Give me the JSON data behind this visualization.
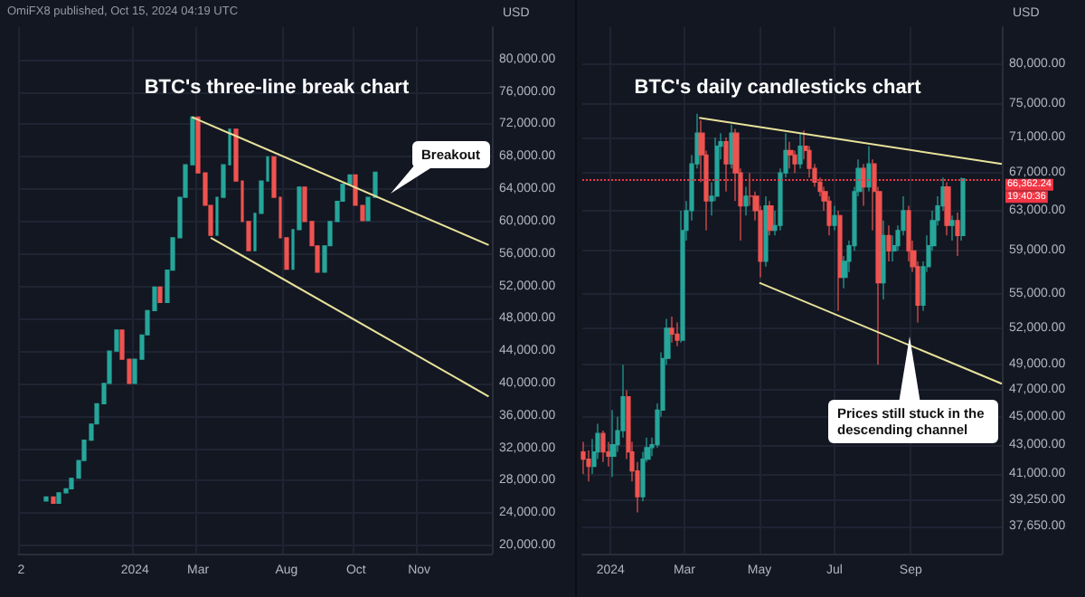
{
  "chart_data": [
    {
      "type": "candlestick",
      "title": "BTC's three-line break chart",
      "ylabel": "USD",
      "categories": [
        "2",
        null,
        null,
        null,
        null,
        null,
        null,
        null,
        null,
        null,
        null,
        null,
        null,
        null,
        null,
        null,
        null,
        null,
        "2024",
        null,
        null,
        null,
        null,
        null,
        null,
        null,
        null,
        null,
        "Mar",
        null,
        null,
        null,
        null,
        null,
        null,
        null,
        null,
        null,
        null,
        null,
        null,
        null,
        "Aug",
        null,
        null,
        null,
        null,
        null,
        null,
        null,
        null,
        null,
        null,
        "Oct",
        null,
        null,
        null,
        null,
        null,
        null,
        null,
        null,
        null,
        "Nov",
        null,
        null,
        null,
        null,
        null,
        null,
        null,
        null,
        null,
        null,
        null
      ],
      "ohlc": [
        null,
        null,
        null,
        null,
        [
          25500,
          26000,
          25500,
          26000
        ],
        [
          26000,
          26000,
          25200,
          25200
        ],
        [
          25200,
          26500,
          25200,
          26500
        ],
        [
          26500,
          27000,
          26500,
          27000
        ],
        [
          27000,
          28300,
          27000,
          28300
        ],
        [
          28300,
          30500,
          28300,
          30500
        ],
        [
          30500,
          33000,
          30500,
          33000
        ],
        [
          33000,
          35000,
          33000,
          35000
        ],
        [
          35000,
          37500,
          35000,
          37500
        ],
        [
          37500,
          40000,
          37500,
          40000
        ],
        [
          40000,
          44000,
          40000,
          44000
        ],
        [
          44000,
          46600,
          44000,
          46600
        ],
        [
          46600,
          46600,
          43000,
          43000
        ],
        [
          43000,
          43000,
          40000,
          40000
        ],
        [
          40000,
          43000,
          40000,
          43000
        ],
        [
          43000,
          46000,
          43000,
          46000
        ],
        [
          46000,
          49000,
          46000,
          49000
        ],
        [
          49000,
          51900,
          49000,
          51900
        ],
        [
          51900,
          51900,
          50000,
          50000
        ],
        [
          50000,
          54000,
          50000,
          54000
        ],
        [
          54000,
          58000,
          54000,
          58000
        ],
        [
          58000,
          63000,
          58000,
          63000
        ],
        [
          63000,
          67000,
          63000,
          67000
        ],
        [
          67000,
          72900,
          67000,
          72900
        ],
        [
          72900,
          72900,
          66000,
          66000
        ],
        [
          66000,
          66000,
          62000,
          62000
        ],
        [
          62000,
          62000,
          58300,
          58300
        ],
        [
          58300,
          63000,
          58300,
          63000
        ],
        [
          63000,
          67000,
          63000,
          67000
        ],
        [
          67000,
          71400,
          67000,
          71400
        ],
        [
          71400,
          71400,
          65000,
          65000
        ],
        [
          65000,
          65000,
          60000,
          60000
        ],
        [
          60000,
          60000,
          56400,
          56400
        ],
        [
          56400,
          61000,
          56400,
          61000
        ],
        [
          61000,
          65000,
          61000,
          65000
        ],
        [
          65000,
          68000,
          65000,
          68000
        ],
        [
          68000,
          68000,
          63000,
          63000
        ],
        [
          63000,
          63000,
          58000,
          58000
        ],
        [
          58000,
          58000,
          54100,
          54100
        ],
        [
          54100,
          59000,
          54100,
          59000
        ],
        [
          59000,
          64250,
          59000,
          64250
        ],
        [
          64250,
          64250,
          60000,
          60000
        ],
        [
          60000,
          60000,
          57000,
          57000
        ],
        [
          57000,
          57000,
          53750,
          53750
        ],
        [
          53750,
          57000,
          53750,
          57000
        ],
        [
          57000,
          60000,
          57000,
          60000
        ],
        [
          60000,
          62500,
          60000,
          62500
        ],
        [
          62500,
          64600,
          62500,
          64600
        ],
        [
          64600,
          65750,
          64600,
          65750
        ],
        [
          65750,
          65750,
          62000,
          62000
        ],
        [
          62000,
          62000,
          60100,
          60100
        ],
        [
          60100,
          63000,
          60100,
          63000
        ],
        [
          63000,
          66100,
          63000,
          66100
        ],
        null,
        null,
        null,
        null,
        null,
        null,
        null,
        null,
        null,
        null,
        null,
        null,
        null,
        null,
        null,
        null,
        null,
        null
      ],
      "colors": [
        null,
        null,
        null,
        null,
        "#26a69a",
        "#ef5350",
        "#26a69a",
        "#26a69a",
        "#26a69a",
        "#26a69a",
        "#26a69a",
        "#26a69a",
        "#26a69a",
        "#26a69a",
        "#26a69a",
        "#26a69a",
        "#ef5350",
        "#ef5350",
        "#26a69a",
        "#26a69a",
        "#26a69a",
        "#26a69a",
        "#ef5350",
        "#26a69a",
        "#26a69a",
        "#26a69a",
        "#26a69a",
        "#26a69a",
        "#ef5350",
        "#ef5350",
        "#ef5350",
        "#26a69a",
        "#26a69a",
        "#26a69a",
        "#ef5350",
        "#ef5350",
        "#ef5350",
        "#26a69a",
        "#26a69a",
        "#26a69a",
        "#ef5350",
        "#ef5350",
        "#ef5350",
        "#26a69a",
        "#26a69a",
        "#ef5350",
        "#ef5350",
        "#ef5350",
        "#26a69a",
        "#26a69a",
        "#26a69a",
        "#26a69a",
        "#26a69a",
        "#ef5350",
        "#ef5350",
        "#26a69a",
        "#26a69a",
        null,
        null,
        null,
        null,
        null,
        null,
        null,
        null,
        null,
        null,
        null,
        null,
        null,
        null,
        null,
        null,
        null,
        null
      ],
      "series": [
        {
          "type": "line",
          "color": "#e8e29a",
          "values": [
            null,
            null,
            null,
            null,
            null,
            null,
            null,
            null,
            null,
            null,
            null,
            null,
            null,
            null,
            null,
            null,
            null,
            null,
            null,
            null,
            null,
            null,
            null,
            null,
            null,
            null,
            null,
            72900,
            null,
            null,
            null,
            null,
            null,
            null,
            null,
            null,
            null,
            null,
            null,
            null,
            null,
            null,
            null,
            null,
            null,
            null,
            null,
            null,
            null,
            null,
            null,
            null,
            null,
            null,
            null,
            null,
            null,
            null,
            null,
            null,
            null,
            null,
            null,
            null,
            null,
            null,
            null,
            null,
            null,
            null,
            null,
            null,
            null,
            null,
            57100
          ]
        },
        {
          "type": "line",
          "color": "#e8e29a",
          "values": [
            null,
            null,
            null,
            null,
            null,
            null,
            null,
            null,
            null,
            null,
            null,
            null,
            null,
            null,
            null,
            null,
            null,
            null,
            null,
            null,
            null,
            null,
            null,
            null,
            null,
            null,
            null,
            null,
            null,
            null,
            58000,
            null,
            null,
            null,
            null,
            null,
            null,
            null,
            null,
            null,
            null,
            null,
            null,
            null,
            null,
            null,
            null,
            null,
            null,
            null,
            null,
            null,
            null,
            null,
            null,
            null,
            null,
            null,
            null,
            null,
            null,
            null,
            null,
            null,
            null,
            null,
            null,
            null,
            null,
            null,
            null,
            null,
            null,
            null,
            38400
          ]
        }
      ],
      "ylim": [
        19000,
        84000
      ],
      "yticks": [
        {
          "value": 20000,
          "label": "20,000.00"
        },
        {
          "value": 24000,
          "label": "24,000.00"
        },
        {
          "value": 28000,
          "label": "28,000.00"
        },
        {
          "value": 32000,
          "label": "32,000.00"
        },
        {
          "value": 36000,
          "label": "36,000.00"
        },
        {
          "value": 40000,
          "label": "40,000.00"
        },
        {
          "value": 44000,
          "label": "44,000.00"
        },
        {
          "value": 48000,
          "label": "48,000.00"
        },
        {
          "value": 52000,
          "label": "52,000.00"
        },
        {
          "value": 56000,
          "label": "56,000.00"
        },
        {
          "value": 60000,
          "label": "60,000.00"
        },
        {
          "value": 64000,
          "label": "64,000.00"
        },
        {
          "value": 68000,
          "label": "68,000.00"
        },
        {
          "value": 72000,
          "label": "72,000.00"
        },
        {
          "value": 76000,
          "label": "76,000.00"
        },
        {
          "value": 80000,
          "label": "80,000.00"
        }
      ],
      "grid": true,
      "annotations": [
        "OmiFX8 published, Oct 15, 2024 04:19 UTC",
        "Breakout"
      ]
    },
    {
      "type": "candlestick",
      "title": "BTC's daily candlesticks chart",
      "ylabel": "USD",
      "x": [
        "2023-12-10",
        "2023-12-14",
        "2023-12-18",
        "2023-12-22",
        "2023-12-26",
        "2023-12-30",
        "2024-01-03",
        "2024-01-07",
        "2024-01-11",
        "2024-01-15",
        "2024-01-19",
        "2024-01-23",
        "2024-01-27",
        "2024-01-31",
        "2024-02-04",
        "2024-02-08",
        "2024-02-12",
        "2024-02-16",
        "2024-02-20",
        "2024-02-24",
        "2024-02-28",
        "2024-03-03",
        "2024-03-07",
        "2024-03-11",
        "2024-03-15",
        "2024-03-19",
        "2024-03-23",
        "2024-03-27",
        "2024-03-31",
        "2024-04-04",
        "2024-04-08",
        "2024-04-12",
        "2024-04-16",
        "2024-04-20",
        "2024-04-24",
        "2024-04-28",
        "2024-05-02",
        "2024-05-06",
        "2024-05-10",
        "2024-05-14",
        "2024-05-18",
        "2024-05-22",
        "2024-05-26",
        "2024-05-30",
        "2024-06-03",
        "2024-06-07",
        "2024-06-11",
        "2024-06-15",
        "2024-06-19",
        "2024-06-23",
        "2024-06-27",
        "2024-07-01",
        "2024-07-05",
        "2024-07-09",
        "2024-07-13",
        "2024-07-17",
        "2024-07-21",
        "2024-07-25",
        "2024-07-29",
        "2024-08-02",
        "2024-08-06",
        "2024-08-10",
        "2024-08-14",
        "2024-08-18",
        "2024-08-22",
        "2024-08-26",
        "2024-08-30",
        "2024-09-03",
        "2024-09-07",
        "2024-09-11",
        "2024-09-15",
        "2024-09-19",
        "2024-09-23",
        "2024-09-27",
        "2024-10-01",
        "2024-10-05",
        "2024-10-09",
        "2024-10-13"
      ],
      "ohlc": [
        [
          42500,
          43200,
          41000,
          42000
        ],
        [
          42000,
          42600,
          40500,
          41500
        ],
        [
          41500,
          43400,
          41000,
          42500
        ],
        [
          42500,
          44500,
          42000,
          43800
        ],
        [
          43800,
          44000,
          41800,
          42500
        ],
        [
          42500,
          43200,
          41500,
          42200
        ],
        [
          42200,
          45500,
          40800,
          43000
        ],
        [
          43000,
          45000,
          42500,
          44000
        ],
        [
          44000,
          49000,
          43500,
          46500
        ],
        [
          46500,
          47000,
          42000,
          42500
        ],
        [
          42500,
          43200,
          40500,
          41200
        ],
        [
          41200,
          41800,
          38500,
          39500
        ],
        [
          39500,
          42500,
          39200,
          42000
        ],
        [
          42000,
          43500,
          41800,
          42800
        ],
        [
          42800,
          43500,
          42200,
          43000
        ],
        [
          43000,
          46000,
          42800,
          45500
        ],
        [
          45500,
          50000,
          45000,
          49500
        ],
        [
          49500,
          52800,
          49000,
          52000
        ],
        [
          52000,
          53000,
          50800,
          51500
        ],
        [
          51500,
          52500,
          50500,
          51000
        ],
        [
          51000,
          63000,
          50800,
          61000
        ],
        [
          61000,
          64000,
          60000,
          63000
        ],
        [
          63000,
          69000,
          62000,
          68000
        ],
        [
          68000,
          73800,
          67500,
          71500
        ],
        [
          71500,
          73000,
          66000,
          69000
        ],
        [
          69000,
          69500,
          61000,
          64000
        ],
        [
          64000,
          66000,
          62500,
          64500
        ],
        [
          64500,
          71000,
          64000,
          70000
        ],
        [
          70000,
          71500,
          68500,
          70500
        ],
        [
          70500,
          71000,
          65000,
          68000
        ],
        [
          68000,
          72500,
          67500,
          71500
        ],
        [
          71500,
          72000,
          64000,
          67000
        ],
        [
          67000,
          67500,
          60000,
          63500
        ],
        [
          63500,
          65500,
          62500,
          64500
        ],
        [
          64500,
          67000,
          63500,
          64500
        ],
        [
          64500,
          65000,
          62000,
          63000
        ],
        [
          63000,
          63500,
          56500,
          58000
        ],
        [
          58000,
          64500,
          57500,
          63500
        ],
        [
          63500,
          64000,
          60500,
          61000
        ],
        [
          61000,
          63000,
          60500,
          61500
        ],
        [
          61500,
          67500,
          61000,
          67000
        ],
        [
          67000,
          71500,
          66500,
          69500
        ],
        [
          69500,
          70500,
          67500,
          69000
        ],
        [
          69000,
          69500,
          67000,
          68000
        ],
        [
          68000,
          71500,
          67500,
          70000
        ],
        [
          70000,
          71800,
          68500,
          69500
        ],
        [
          69500,
          70000,
          66500,
          67500
        ],
        [
          67500,
          68000,
          65500,
          66000
        ],
        [
          66000,
          66500,
          64500,
          65000
        ],
        [
          65000,
          65500,
          63000,
          64000
        ],
        [
          64000,
          64500,
          60500,
          61500
        ],
        [
          61500,
          63500,
          61000,
          62500
        ],
        [
          62500,
          63000,
          53500,
          56500
        ],
        [
          56500,
          58500,
          55500,
          58000
        ],
        [
          58000,
          60000,
          57000,
          59500
        ],
        [
          59500,
          65500,
          59000,
          65000
        ],
        [
          65000,
          68500,
          64500,
          67500
        ],
        [
          67500,
          68000,
          63500,
          65500
        ],
        [
          65500,
          70000,
          65000,
          68000
        ],
        [
          68000,
          68500,
          61000,
          65000
        ],
        [
          65000,
          65500,
          49000,
          56000
        ],
        [
          56000,
          62000,
          54500,
          60500
        ],
        [
          60500,
          61500,
          58000,
          59000
        ],
        [
          59000,
          60500,
          58000,
          59500
        ],
        [
          59500,
          61500,
          59000,
          61000
        ],
        [
          61000,
          64500,
          60500,
          63000
        ],
        [
          63000,
          63500,
          58000,
          59000
        ],
        [
          59000,
          60000,
          57000,
          57500
        ],
        [
          57500,
          58000,
          52500,
          54000
        ],
        [
          54000,
          58000,
          53500,
          57500
        ],
        [
          57500,
          60500,
          57000,
          59500
        ],
        [
          59500,
          63000,
          59000,
          62000
        ],
        [
          62000,
          64500,
          61500,
          63500
        ],
        [
          63500,
          66500,
          63000,
          65500
        ],
        [
          65500,
          66000,
          60500,
          61500
        ],
        [
          61500,
          62500,
          60000,
          62000
        ],
        [
          62000,
          62800,
          58500,
          60500
        ],
        [
          60500,
          66500,
          60000,
          66362.24
        ]
      ],
      "colors": [
        "#ef5350",
        "#ef5350",
        "#26a69a",
        "#26a69a",
        "#ef5350",
        "#ef5350",
        "#26a69a",
        "#26a69a",
        "#26a69a",
        "#ef5350",
        "#ef5350",
        "#ef5350",
        "#26a69a",
        "#26a69a",
        "#26a69a",
        "#26a69a",
        "#26a69a",
        "#26a69a",
        "#ef5350",
        "#ef5350",
        "#26a69a",
        "#26a69a",
        "#26a69a",
        "#26a69a",
        "#ef5350",
        "#ef5350",
        "#26a69a",
        "#26a69a",
        "#26a69a",
        "#ef5350",
        "#26a69a",
        "#ef5350",
        "#ef5350",
        "#26a69a",
        "#ef5350",
        "#ef5350",
        "#ef5350",
        "#26a69a",
        "#ef5350",
        "#26a69a",
        "#26a69a",
        "#26a69a",
        "#ef5350",
        "#ef5350",
        "#26a69a",
        "#ef5350",
        "#ef5350",
        "#ef5350",
        "#ef5350",
        "#ef5350",
        "#ef5350",
        "#26a69a",
        "#ef5350",
        "#26a69a",
        "#26a69a",
        "#26a69a",
        "#26a69a",
        "#ef5350",
        "#26a69a",
        "#ef5350",
        "#ef5350",
        "#26a69a",
        "#ef5350",
        "#26a69a",
        "#26a69a",
        "#26a69a",
        "#ef5350",
        "#ef5350",
        "#ef5350",
        "#26a69a",
        "#26a69a",
        "#26a69a",
        "#26a69a",
        "#26a69a",
        "#ef5350",
        "#26a69a",
        "#ef5350",
        "#26a69a"
      ],
      "series": [
        {
          "type": "line",
          "color": "#e8e29a",
          "x": [
            "2024-03-13",
            "2024-11-14"
          ],
          "values": [
            73300,
            68000
          ]
        },
        {
          "type": "line",
          "color": "#e8e29a",
          "x": [
            "2024-05-01",
            "2024-11-14"
          ],
          "values": [
            56000,
            47500
          ]
        }
      ],
      "xlim": [
        "2023-12-09",
        "2024-11-14"
      ],
      "xticks": [
        {
          "value": "2024-01-01",
          "label": "2024"
        },
        {
          "value": "2024-03-01",
          "label": "Mar"
        },
        {
          "value": "2024-05-01",
          "label": "May"
        },
        {
          "value": "2024-07-01",
          "label": "Jul"
        },
        {
          "value": "2024-09-01",
          "label": "Sep"
        }
      ],
      "log": true,
      "ylim": [
        36000,
        85000
      ],
      "yticks": [
        {
          "value": 37650,
          "label": "37,650.00"
        },
        {
          "value": 39250,
          "label": "39,250.00"
        },
        {
          "value": 41000,
          "label": "41,000.00"
        },
        {
          "value": 43000,
          "label": "43,000.00"
        },
        {
          "value": 45000,
          "label": "45,000.00"
        },
        {
          "value": 47000,
          "label": "47,000.00"
        },
        {
          "value": 49000,
          "label": "49,000.00"
        },
        {
          "value": 52000,
          "label": "52,000.00"
        },
        {
          "value": 55000,
          "label": "55,000.00"
        },
        {
          "value": 59000,
          "label": "59,000.00"
        },
        {
          "value": 63000,
          "label": "63,000.00"
        },
        {
          "value": 67000,
          "label": "67,000.00"
        },
        {
          "value": 71000,
          "label": "71,000.00"
        },
        {
          "value": 75000,
          "label": "75,000.00"
        },
        {
          "value": 80000,
          "label": "80,000.00"
        }
      ],
      "ref_lines": [
        {
          "axis": "y",
          "value": 66362.24,
          "label": "66,362.24",
          "color": "#f23645",
          "line_style": "dotted"
        }
      ],
      "grid": true,
      "annotations": [
        "Prices still stuck in the descending channel",
        "19:40:36"
      ]
    }
  ]
}
